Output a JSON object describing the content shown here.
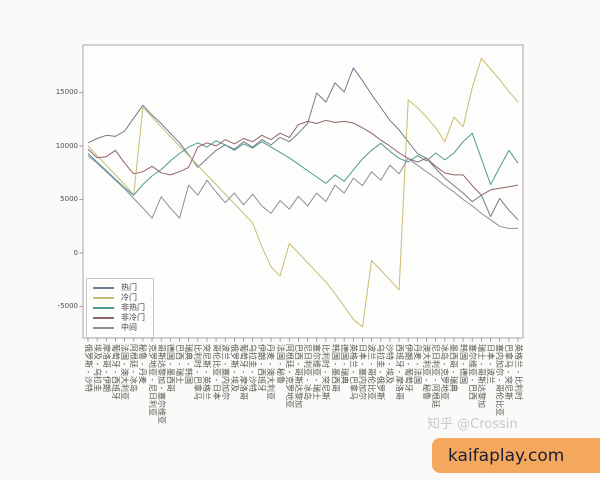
{
  "figure": {
    "watermark": "知乎 @Crossin",
    "banner": "kaifaplay.com",
    "banner_bg": "#f4a85e",
    "banner_text_color": "#1d1d35",
    "axis_color": "#a8a8a8",
    "plot_bg": "#fdfdfc"
  },
  "chart_data": {
    "type": "line",
    "title": "",
    "xlabel": "",
    "ylabel": "",
    "ylim": [
      -7950,
      19450
    ],
    "yticks": [
      -5000,
      0,
      5000,
      10000,
      15000
    ],
    "grid": false,
    "legend_position": "lower left",
    "categories": [
      "俄罗斯 - 沙特",
      "埃及 - 乌拉圭",
      "摩洛哥 - 伊朗",
      "葡萄牙 - 西班牙",
      "法国 - 澳大利亚",
      "阿根廷 - 冰岛",
      "秘鲁 - 丹麦",
      "克罗地亚 - 尼日利亚",
      "哥斯达黎加 - 塞尔维亚",
      "德国 - 墨西哥",
      "巴西 - 瑞士",
      "瑞典 - 韩国",
      "比利时 - 巴拿马",
      "突尼斯 - 英格兰",
      "哥伦比亚 - 日本",
      "波兰 - 塞内加尔",
      "俄罗斯 - 埃及",
      "葡萄牙 - 摩洛哥",
      "乌拉圭 - 沙特",
      "伊朗 - 西班牙",
      "丹麦 - 澳大利亚",
      "法国 - 秘鲁",
      "阿根廷 - 克罗地亚",
      "巴西 - 哥斯达黎加",
      "尼日利亚 - 冰岛",
      "塞尔维亚 - 瑞士",
      "比利时 - 突尼斯",
      "韩国 - 墨西哥",
      "德国 - 瑞典",
      "英格兰 - 巴拿马",
      "日本 - 塞内加尔",
      "波兰 - 哥伦比亚",
      "乌拉圭 - 俄罗斯",
      "沙特 - 埃及",
      "西班牙 - 摩洛哥",
      "伊朗 - 葡萄牙",
      "丹麦 - 法国",
      "澳大利亚 - 秘鲁",
      "尼日利亚 - 阿根廷",
      "冰岛 - 克罗地亚",
      "墨西哥 - 瑞典",
      "韩国 - 德国",
      "塞尔维亚 - 巴西",
      "瑞士 - 哥斯达黎加",
      "日本 - 波兰",
      "塞内加尔 - 哥伦比亚",
      "巴拿马 - 突尼斯",
      "英格兰 - 比利时"
    ],
    "series": [
      {
        "name": "热门",
        "color": "#707c90",
        "values": [
          10300,
          10700,
          11000,
          10900,
          11400,
          12600,
          13800,
          12900,
          12100,
          11200,
          10300,
          9200,
          8000,
          8800,
          9600,
          10100,
          9700,
          10400,
          9900,
          10600,
          10100,
          10800,
          10400,
          11200,
          12100,
          14950,
          14100,
          15900,
          15050,
          17300,
          16100,
          14800,
          13600,
          12400,
          11500,
          10400,
          9300,
          8850,
          7900,
          7000,
          6300,
          5600,
          4800,
          5400,
          3400,
          5100,
          4000,
          3100
        ]
      },
      {
        "name": "冷门",
        "color": "#c9bc74",
        "values": [
          10000,
          9100,
          8200,
          7300,
          6400,
          5400,
          13600,
          12700,
          11800,
          10900,
          10000,
          9100,
          8200,
          7300,
          6400,
          5500,
          4600,
          3700,
          2800,
          600,
          -1300,
          -2150,
          900,
          0,
          -900,
          -1800,
          -2700,
          -3800,
          -5000,
          -6200,
          -6900,
          -700,
          -1600,
          -2500,
          -3450,
          14300,
          13600,
          12700,
          11700,
          10400,
          12700,
          11800,
          15500,
          18200,
          17200,
          16200,
          15100,
          14100
        ]
      },
      {
        "name": "非热门",
        "color": "#4f9a8e",
        "values": [
          9300,
          8500,
          7700,
          6900,
          6100,
          5400,
          6400,
          7200,
          7800,
          8600,
          9300,
          9900,
          10300,
          9900,
          10500,
          10100,
          9600,
          10200,
          9800,
          10400,
          9900,
          9400,
          8900,
          8300,
          7700,
          7100,
          6500,
          7300,
          6700,
          7750,
          8800,
          9600,
          10250,
          9500,
          8850,
          8500,
          9100,
          8600,
          9350,
          8700,
          9350,
          10400,
          11200,
          8800,
          6400,
          8000,
          9600,
          8400
        ]
      },
      {
        "name": "非冷门",
        "color": "#92636c",
        "values": [
          9700,
          8900,
          9000,
          9600,
          8400,
          7400,
          7600,
          8100,
          7500,
          7300,
          7600,
          8000,
          9900,
          10300,
          10000,
          10600,
          10200,
          10700,
          10400,
          11000,
          10600,
          11200,
          10800,
          12000,
          12300,
          12100,
          12400,
          12200,
          12300,
          12150,
          11700,
          11200,
          10550,
          10000,
          9350,
          8850,
          8500,
          8850,
          8100,
          7480,
          7300,
          7300,
          6300,
          5400,
          5900,
          6050,
          6200,
          6350
        ]
      },
      {
        "name": "中间",
        "color": "#8f8e9b",
        "values": [
          9100,
          8400,
          7600,
          6800,
          6000,
          5100,
          4200,
          3250,
          5250,
          4200,
          3250,
          6350,
          5400,
          6800,
          5700,
          4700,
          5600,
          4500,
          5500,
          4400,
          3700,
          4900,
          4100,
          5300,
          4400,
          5600,
          4800,
          6350,
          5600,
          7000,
          6300,
          7600,
          6800,
          8200,
          7400,
          8850,
          8200,
          7600,
          7000,
          6300,
          5700,
          5000,
          4400,
          3700,
          3100,
          2500,
          2300,
          2300
        ]
      }
    ]
  }
}
